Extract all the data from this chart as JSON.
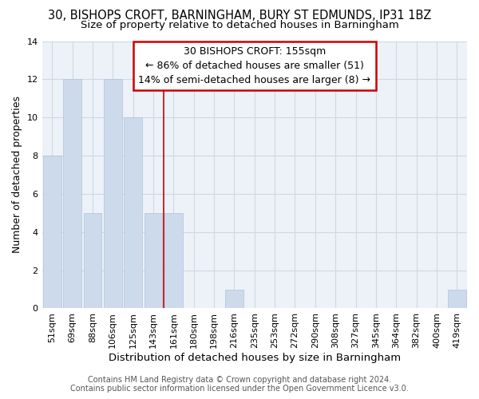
{
  "categories": [
    "51sqm",
    "69sqm",
    "88sqm",
    "106sqm",
    "125sqm",
    "143sqm",
    "161sqm",
    "180sqm",
    "198sqm",
    "216sqm",
    "235sqm",
    "253sqm",
    "272sqm",
    "290sqm",
    "308sqm",
    "327sqm",
    "345sqm",
    "364sqm",
    "382sqm",
    "400sqm",
    "419sqm"
  ],
  "values": [
    8,
    12,
    5,
    12,
    10,
    5,
    5,
    0,
    0,
    1,
    0,
    0,
    0,
    0,
    0,
    0,
    0,
    0,
    0,
    0,
    1
  ],
  "bar_color": "#ccdaeb",
  "bar_edgecolor": "#b0c4d8",
  "title": "30, BISHOPS CROFT, BARNINGHAM, BURY ST EDMUNDS, IP31 1BZ",
  "subtitle": "Size of property relative to detached houses in Barningham",
  "xlabel": "Distribution of detached houses by size in Barningham",
  "ylabel": "Number of detached properties",
  "ylim": [
    0,
    14
  ],
  "yticks": [
    0,
    2,
    4,
    6,
    8,
    10,
    12,
    14
  ],
  "vline_x_index": 6,
  "vline_color": "#cc0000",
  "annotation_lines": [
    "30 BISHOPS CROFT: 155sqm",
    "← 86% of detached houses are smaller (51)",
    "14% of semi-detached houses are larger (8) →"
  ],
  "annotation_box_color": "#cc0000",
  "footer_line1": "Contains HM Land Registry data © Crown copyright and database right 2024.",
  "footer_line2": "Contains public sector information licensed under the Open Government Licence v3.0.",
  "bg_color": "#edf2f8",
  "grid_color": "#d0d8e4",
  "title_fontsize": 10.5,
  "subtitle_fontsize": 9.5,
  "xlabel_fontsize": 9.5,
  "ylabel_fontsize": 9,
  "tick_fontsize": 8,
  "footer_fontsize": 7,
  "annotation_fontsize": 9
}
